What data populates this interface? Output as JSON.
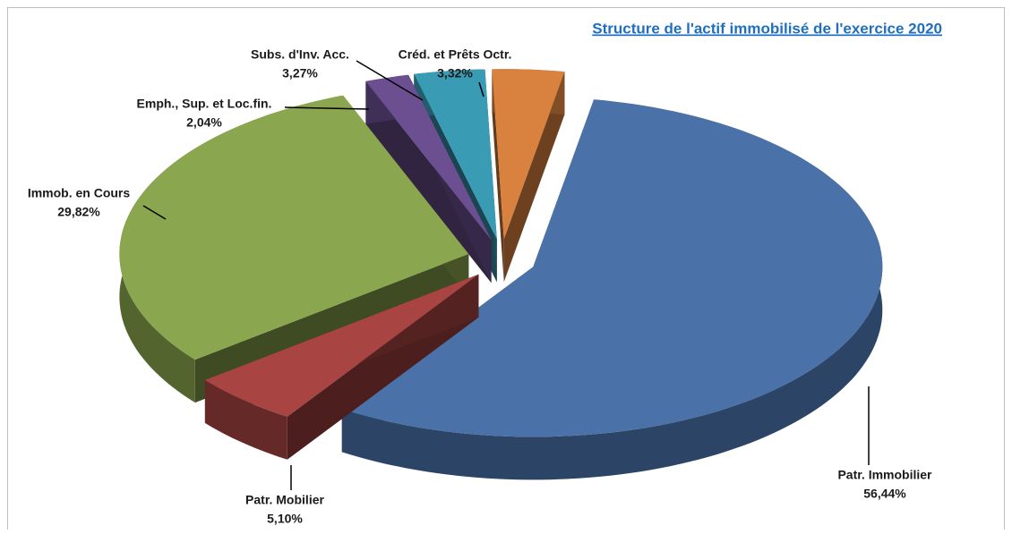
{
  "chart_data": {
    "type": "pie3d",
    "title": "Structure de l'actif immobilisé de l'exercice 2020",
    "categories": [
      "Patr. Immobilier",
      "Patr. Mobilier",
      "Immob. en Cours",
      "Emph., Sup. et Loc.fin.",
      "Subs. d'Inv. Acc.",
      "Créd. et Prêts Octr."
    ],
    "values": [
      56.44,
      5.1,
      29.82,
      2.04,
      3.27,
      3.32
    ],
    "value_labels": [
      "56,44%",
      "5,10%",
      "29,82%",
      "2,04%",
      "3,27%",
      "3,32%"
    ],
    "colors": [
      "#4a72a8",
      "#a84442",
      "#8aa64e",
      "#6b4f91",
      "#3a9bb5",
      "#d9823f"
    ]
  }
}
